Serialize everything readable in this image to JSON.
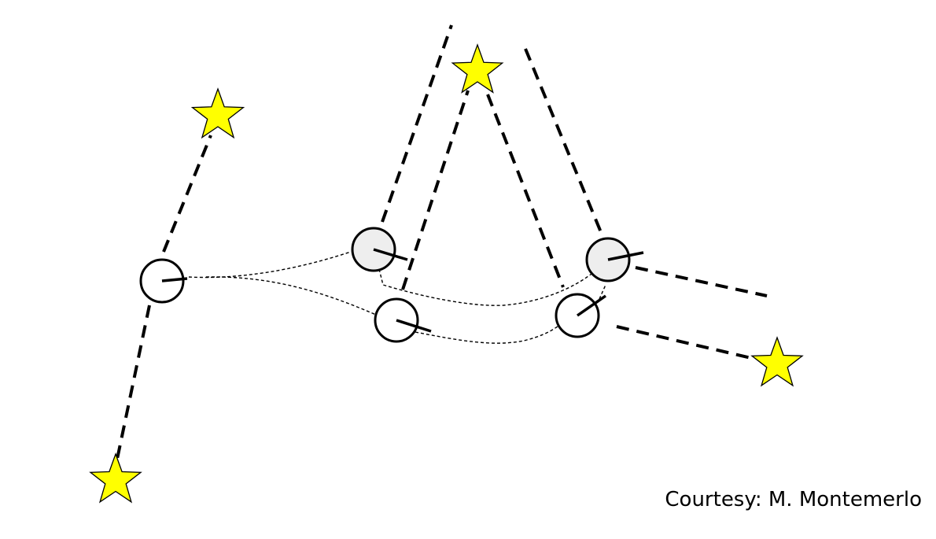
{
  "credit": {
    "text": "Courtesy: M. Montemerlo"
  },
  "colors": {
    "background": "#ffffff",
    "star_fill": "#ffff00",
    "star_stroke": "#000000",
    "pose_fill": "#ffffff",
    "pose_fill_alt": "#eeeeee",
    "line": "#000000"
  }
}
